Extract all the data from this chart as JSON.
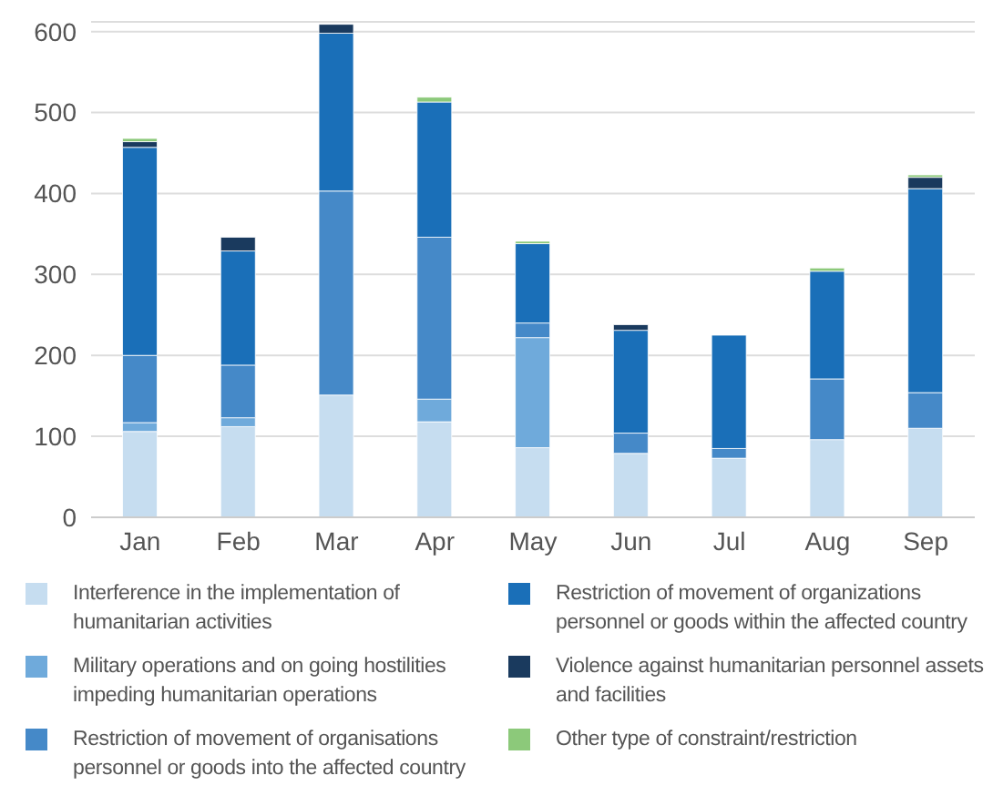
{
  "chart_data": {
    "type": "bar",
    "stacked": true,
    "categories": [
      "Jan",
      "Feb",
      "Mar",
      "Apr",
      "May",
      "Jun",
      "Jul",
      "Aug",
      "Sep"
    ],
    "series": [
      {
        "name": "Interference in the implementation of humanitarian activities",
        "color": "#c6ddf0",
        "values": [
          106,
          112,
          151,
          118,
          86,
          79,
          73,
          96,
          110
        ]
      },
      {
        "name": "Military operations and on going hostilities impeding humanitarian operations",
        "color": "#6faadb",
        "values": [
          11,
          11,
          0,
          28,
          136,
          0,
          0,
          0,
          0
        ]
      },
      {
        "name": "Restriction of movement of organisations personnel or goods into the affected country",
        "color": "#4589c8",
        "values": [
          83,
          65,
          252,
          200,
          18,
          25,
          12,
          75,
          44
        ]
      },
      {
        "name": "Restriction of movement of organizations personnel or goods within the affected country",
        "color": "#1a6fb8",
        "values": [
          257,
          141,
          195,
          167,
          98,
          127,
          140,
          133,
          252
        ]
      },
      {
        "name": "Violence against humanitarian personnel assets and facilities",
        "color": "#1a3a5e",
        "values": [
          7,
          17,
          11,
          0,
          0,
          7,
          0,
          0,
          14
        ]
      },
      {
        "name": "Other type of constraint/restriction",
        "color": "#8cc97a",
        "values": [
          4,
          0,
          0,
          6,
          3,
          0,
          0,
          4,
          3
        ]
      }
    ],
    "ylim": [
      0,
      612
    ],
    "yticks": [
      0,
      100,
      200,
      300,
      400,
      500,
      600
    ],
    "grid": "y",
    "legend": "bottom"
  }
}
